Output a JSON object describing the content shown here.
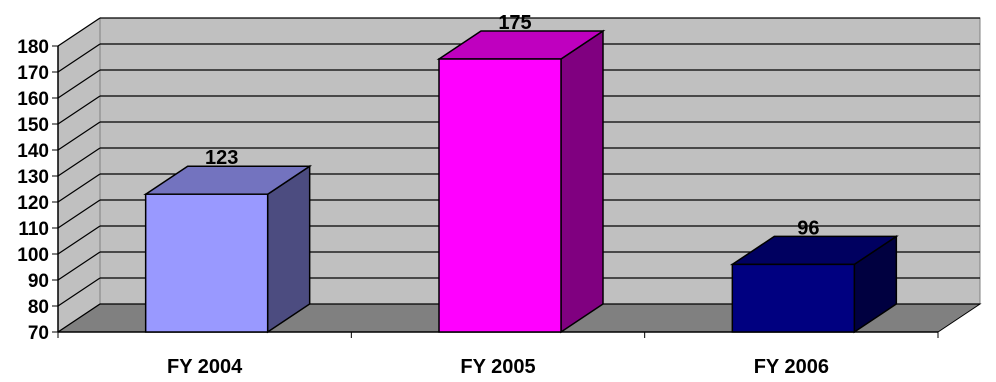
{
  "chart_data": {
    "type": "bar",
    "categories": [
      "FY 2004",
      "FY 2005",
      "FY 2006"
    ],
    "values": [
      123,
      175,
      96
    ],
    "data_labels": [
      "123",
      "175",
      "96"
    ],
    "ylim": [
      70,
      180
    ],
    "yticks": [
      "70",
      "80",
      "90",
      "100",
      "110",
      "120",
      "130",
      "140",
      "150",
      "160",
      "170",
      "180"
    ],
    "grid": true,
    "legend": "none",
    "three_d": true,
    "colors": [
      {
        "front": "#9999FF",
        "side": "#4C4C80",
        "top": "#7373BF"
      },
      {
        "front": "#FF00FF",
        "side": "#800080",
        "top": "#BF00BF"
      },
      {
        "front": "#000080",
        "side": "#000040",
        "top": "#000060"
      }
    ],
    "wall_color": "#C0C0C0",
    "floor_color": "#808080"
  }
}
